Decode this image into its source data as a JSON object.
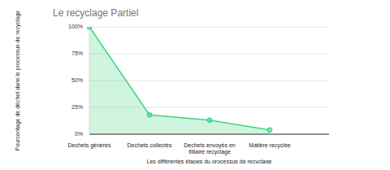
{
  "chart_data": {
    "type": "area",
    "title": "Le recyclage Partiel",
    "x_label": "Les différentes étapes du processus de recyclage",
    "y_label": "Pourcentage de déchet dans le processus de recyclage",
    "categories": [
      "Dechets générés",
      "Dechets collectés",
      "Dechets envoyés en filliaire recyclage",
      "Matière recyclée"
    ],
    "values": [
      100,
      18,
      13,
      4
    ],
    "color": "#3fd47f",
    "marker": "circle",
    "ylim": [
      0,
      100
    ],
    "yticks": [
      {
        "value": 0,
        "label": "0%"
      },
      {
        "value": 25,
        "label": "25%"
      },
      {
        "value": 50,
        "label": "50%"
      },
      {
        "value": 75,
        "label": "75%"
      },
      {
        "value": 100,
        "label": "100%"
      }
    ],
    "grid": true
  }
}
